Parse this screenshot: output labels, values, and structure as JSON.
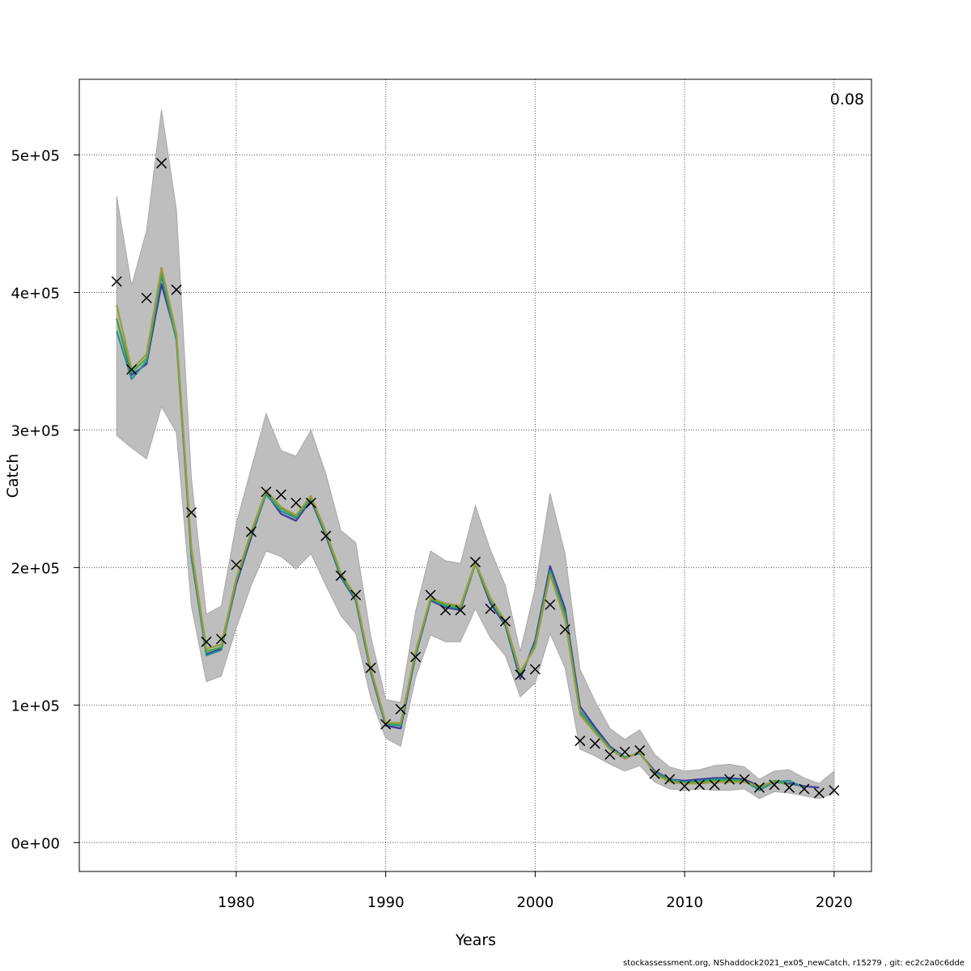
{
  "chart_data": {
    "type": "line",
    "xlabel": "Years",
    "ylabel": "Catch",
    "corner_label": "0.08",
    "xlim": [
      1969.5,
      2022.5
    ],
    "ylim": [
      -21000,
      555000
    ],
    "x_ticks": [
      1980,
      1990,
      2000,
      2010,
      2020
    ],
    "y_ticks": [
      {
        "value": 0,
        "label": "0e+00"
      },
      {
        "value": 100000,
        "label": "1e+05"
      },
      {
        "value": 200000,
        "label": "2e+05"
      },
      {
        "value": 300000,
        "label": "3e+05"
      },
      {
        "value": 400000,
        "label": "4e+05"
      },
      {
        "value": 500000,
        "label": "5e+05"
      }
    ],
    "grid": true,
    "colors": {
      "band": "#bebebe",
      "series": [
        "#3b3b9b",
        "#2a8f8f",
        "#44a844",
        "#9b9b3b"
      ],
      "observed": "#000000",
      "grid": "#555555"
    },
    "band": {
      "x": [
        1972,
        1973,
        1974,
        1975,
        1976,
        1977,
        1978,
        1979,
        1980,
        1981,
        1982,
        1983,
        1984,
        1985,
        1986,
        1987,
        1988,
        1989,
        1990,
        1991,
        1992,
        1993,
        1994,
        1995,
        1996,
        1997,
        1998,
        1999,
        2000,
        2001,
        2002,
        2003,
        2004,
        2005,
        2006,
        2007,
        2008,
        2009,
        2010,
        2011,
        2012,
        2013,
        2014,
        2015,
        2016,
        2017,
        2018,
        2019,
        2020
      ],
      "upper": [
        470000,
        405000,
        445000,
        533000,
        460000,
        265000,
        166000,
        172000,
        232000,
        272000,
        312000,
        285000,
        281000,
        300000,
        268000,
        227000,
        218000,
        150000,
        104000,
        102000,
        168000,
        212000,
        205000,
        203000,
        245000,
        213000,
        187000,
        139000,
        185000,
        254000,
        210000,
        126000,
        103000,
        83000,
        75000,
        82000,
        64000,
        55000,
        52000,
        53000,
        56000,
        57000,
        55000,
        46000,
        52000,
        53000,
        47000,
        43000,
        52000
      ],
      "lower": [
        296000,
        287000,
        279000,
        317000,
        298000,
        172000,
        117000,
        121000,
        156000,
        187000,
        212000,
        208000,
        199000,
        210000,
        187000,
        165000,
        152000,
        105000,
        76000,
        70000,
        120000,
        151000,
        146000,
        146000,
        170000,
        149000,
        136000,
        106000,
        116000,
        152000,
        127000,
        68000,
        63000,
        57000,
        52000,
        56000,
        44000,
        39000,
        38000,
        39000,
        38000,
        38000,
        39000,
        32000,
        37000,
        36000,
        34000,
        32000,
        36000
      ]
    },
    "series": [
      {
        "x": [
          1972,
          1973,
          1974,
          1975,
          1976,
          1977,
          1978,
          1979,
          1980,
          1981,
          1982,
          1983,
          1984,
          1985,
          1986,
          1987,
          1988,
          1989,
          1990,
          1991,
          1992,
          1993,
          1994,
          1995,
          1996,
          1997,
          1998,
          1999,
          2000,
          2001,
          2002,
          2003,
          2004,
          2005,
          2006,
          2007,
          2008,
          2009,
          2010,
          2011,
          2012,
          2013,
          2014,
          2015,
          2016,
          2017,
          2018,
          2019
        ],
        "values": [
          381000,
          340000,
          348000,
          406000,
          367000,
          208000,
          137000,
          141000,
          188000,
          222000,
          254000,
          239000,
          234000,
          249000,
          223000,
          193000,
          176000,
          124000,
          85000,
          83000,
          136000,
          176000,
          171000,
          169000,
          203000,
          174000,
          158000,
          119000,
          147000,
          201000,
          170000,
          99000,
          84000,
          70000,
          62000,
          65000,
          52000,
          46000,
          45000,
          46000,
          47000,
          47000,
          46000,
          41000,
          44000,
          43000,
          41000,
          40000
        ]
      },
      {
        "x": [
          1972,
          1973,
          1974,
          1975,
          1976,
          1977,
          1978,
          1979,
          1980,
          1981,
          1982,
          1983,
          1984,
          1985,
          1986,
          1987,
          1988,
          1989,
          1990,
          1991,
          1992,
          1993,
          1994,
          1995,
          1996,
          1997,
          1998,
          1999,
          2000,
          2001,
          2002,
          2003,
          2004,
          2005,
          2006,
          2007,
          2008,
          2009,
          2010,
          2011,
          2012,
          2013,
          2014,
          2015,
          2016,
          2017,
          2018
        ],
        "values": [
          372000,
          337000,
          350000,
          412000,
          365000,
          210000,
          136000,
          140000,
          190000,
          224000,
          253000,
          241000,
          236000,
          250000,
          224000,
          194000,
          177000,
          125000,
          86000,
          85000,
          137000,
          177000,
          172000,
          170000,
          203000,
          176000,
          159000,
          121000,
          145000,
          198000,
          167000,
          96000,
          82000,
          69000,
          62000,
          65000,
          51000,
          46000,
          44000,
          45000,
          46000,
          46000,
          45000,
          38000,
          44000,
          45000,
          40000
        ]
      },
      {
        "x": [
          1972,
          1973,
          1974,
          1975,
          1976,
          1977,
          1978,
          1979,
          1980,
          1981,
          1982,
          1983,
          1984,
          1985,
          1986,
          1987,
          1988,
          1989,
          1990,
          1991,
          1992,
          1993,
          1994,
          1995,
          1996,
          1997,
          1998,
          1999,
          2000,
          2001,
          2002,
          2003,
          2004,
          2005,
          2006,
          2007,
          2008,
          2009,
          2010,
          2011,
          2012,
          2013,
          2014,
          2015,
          2016,
          2017
        ],
        "values": [
          381000,
          342000,
          352000,
          416000,
          368000,
          212000,
          139000,
          142000,
          191000,
          225000,
          255000,
          243000,
          237000,
          251000,
          225000,
          195000,
          178000,
          126000,
          87000,
          86000,
          138000,
          177000,
          173000,
          171000,
          203000,
          177000,
          160000,
          123000,
          143000,
          196000,
          164000,
          94000,
          81000,
          68000,
          61000,
          66000,
          50000,
          45000,
          43000,
          44000,
          45000,
          45000,
          45000,
          40000,
          45000,
          42000
        ]
      },
      {
        "x": [
          1972,
          1973,
          1974,
          1975,
          1976,
          1977,
          1978,
          1979,
          1980,
          1981,
          1982,
          1983,
          1984,
          1985,
          1986,
          1987,
          1988,
          1989,
          1990,
          1991,
          1992,
          1993,
          1994,
          1995,
          1996,
          1997,
          1998,
          1999,
          2000,
          2001,
          2002,
          2003,
          2004,
          2005,
          2006,
          2007,
          2008,
          2009,
          2010,
          2011,
          2012,
          2013,
          2014,
          2015,
          2016
        ],
        "values": [
          391000,
          344000,
          355000,
          418000,
          370000,
          214000,
          141000,
          144000,
          192000,
          226000,
          256000,
          244000,
          238000,
          252000,
          226000,
          196000,
          179000,
          127000,
          87000,
          87000,
          139000,
          178000,
          174000,
          172000,
          204000,
          178000,
          161000,
          124000,
          142000,
          195000,
          162000,
          93000,
          80000,
          68000,
          61000,
          66000,
          50000,
          44000,
          43000,
          43000,
          44000,
          44000,
          44000,
          41000,
          44000
        ]
      }
    ],
    "observed": {
      "x": [
        1972,
        1973,
        1974,
        1975,
        1976,
        1977,
        1978,
        1979,
        1980,
        1981,
        1982,
        1983,
        1984,
        1985,
        1986,
        1987,
        1988,
        1989,
        1990,
        1991,
        1992,
        1993,
        1994,
        1995,
        1996,
        1997,
        1998,
        1999,
        2000,
        2001,
        2002,
        2003,
        2004,
        2005,
        2006,
        2007,
        2008,
        2009,
        2010,
        2011,
        2012,
        2013,
        2014,
        2015,
        2016,
        2017,
        2018,
        2019,
        2020
      ],
      "values": [
        408000,
        344000,
        396000,
        494000,
        402000,
        240000,
        146000,
        148000,
        202000,
        226000,
        255000,
        253000,
        247000,
        247000,
        223000,
        194000,
        180000,
        127000,
        86000,
        97000,
        135000,
        180000,
        169000,
        169000,
        204000,
        170000,
        161000,
        122000,
        126000,
        173000,
        155000,
        74000,
        72000,
        64000,
        66000,
        67000,
        50000,
        46000,
        41000,
        42000,
        42000,
        46000,
        46000,
        40000,
        42000,
        40000,
        39000,
        36000,
        38000
      ]
    }
  },
  "footer": "stockassessment.org, NShaddock2021_ex05_newCatch, r15279 , git: ec2c2a0c6dde"
}
